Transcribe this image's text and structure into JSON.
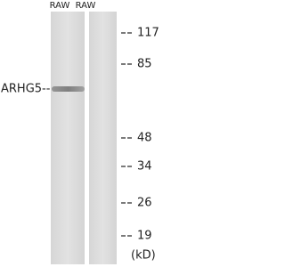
{
  "lanes": [
    "RAW",
    "RAW"
  ],
  "band_label": "ARHG5--",
  "markers": [
    "117",
    "85",
    "48",
    "34",
    "26",
    "19"
  ],
  "unit": "(kD)"
}
